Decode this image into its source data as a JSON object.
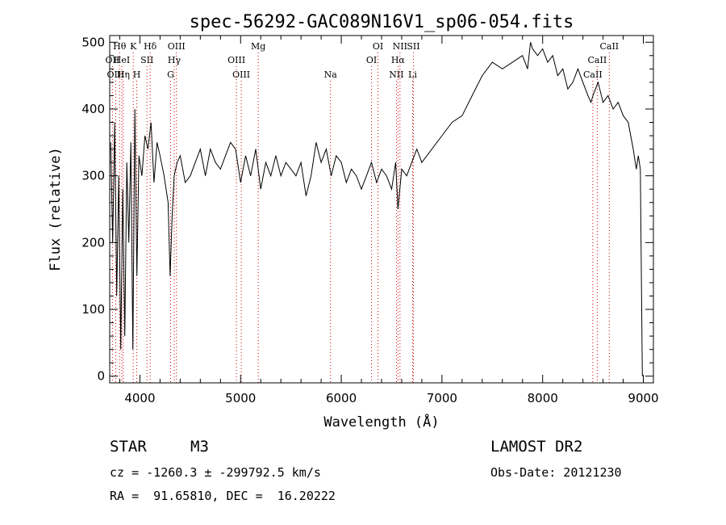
{
  "chart_data": {
    "type": "line",
    "title": "spec-56292-GAC089N16V1_sp06-054.fits",
    "xlabel": "Wavelength (Å)",
    "ylabel": "Flux (relative)",
    "xlim": [
      3700,
      9100
    ],
    "ylim": [
      -10,
      510
    ],
    "xticks": [
      4000,
      5000,
      6000,
      7000,
      8000,
      9000
    ],
    "yticks": [
      0,
      100,
      200,
      300,
      400,
      500
    ],
    "grid": false,
    "series": [
      {
        "x": [
          3710,
          3730,
          3750,
          3770,
          3790,
          3810,
          3830,
          3850,
          3870,
          3890,
          3910,
          3930,
          3950,
          3970,
          3990,
          4020,
          4050,
          4080,
          4110,
          4140,
          4170,
          4200,
          4240,
          4280,
          4300,
          4320,
          4340,
          4370,
          4400,
          4450,
          4500,
          4550,
          4600,
          4650,
          4700,
          4750,
          4800,
          4850,
          4900,
          4950,
          5000,
          5050,
          5100,
          5150,
          5200,
          5250,
          5300,
          5350,
          5400,
          5450,
          5500,
          5550,
          5600,
          5650,
          5700,
          5750,
          5800,
          5850,
          5900,
          5950,
          6000,
          6050,
          6100,
          6150,
          6200,
          6250,
          6300,
          6350,
          6400,
          6450,
          6500,
          6540,
          6563,
          6600,
          6650,
          6700,
          6750,
          6800,
          6850,
          6900,
          6950,
          7000,
          7100,
          7200,
          7300,
          7400,
          7500,
          7600,
          7700,
          7800,
          7850,
          7880,
          7900,
          7950,
          8000,
          8050,
          8100,
          8150,
          8200,
          8250,
          8300,
          8350,
          8400,
          8450,
          8480,
          8500,
          8550,
          8600,
          8650,
          8700,
          8750,
          8800,
          8850,
          8900,
          8930,
          8950,
          8970,
          8990
        ],
        "y": [
          350,
          200,
          380,
          120,
          300,
          40,
          280,
          60,
          320,
          200,
          350,
          40,
          400,
          150,
          330,
          300,
          360,
          340,
          380,
          290,
          350,
          330,
          300,
          260,
          150,
          240,
          300,
          320,
          330,
          290,
          300,
          320,
          340,
          300,
          340,
          320,
          310,
          330,
          350,
          340,
          290,
          330,
          300,
          340,
          280,
          320,
          300,
          330,
          300,
          320,
          310,
          300,
          320,
          270,
          300,
          350,
          320,
          340,
          300,
          330,
          320,
          290,
          310,
          300,
          280,
          300,
          320,
          290,
          310,
          300,
          280,
          320,
          250,
          310,
          300,
          320,
          340,
          320,
          330,
          340,
          350,
          360,
          380,
          390,
          420,
          450,
          470,
          460,
          470,
          480,
          460,
          500,
          490,
          480,
          490,
          470,
          480,
          450,
          460,
          430,
          440,
          460,
          440,
          420,
          410,
          420,
          440,
          410,
          420,
          400,
          410,
          390,
          380,
          340,
          310,
          330,
          310,
          0
        ]
      }
    ],
    "annotations": [
      {
        "label": "Hθ",
        "x": 3798,
        "row": 0
      },
      {
        "label": "K",
        "x": 3934,
        "row": 0
      },
      {
        "label": "Hδ",
        "x": 4102,
        "row": 0
      },
      {
        "label": "OIII",
        "x": 4363,
        "row": 0
      },
      {
        "label": "Mg",
        "x": 5175,
        "row": 0
      },
      {
        "label": "OI",
        "x": 6364,
        "row": 0
      },
      {
        "label": "NII",
        "x": 6583,
        "row": 0
      },
      {
        "label": "SII",
        "x": 6716,
        "row": 0
      },
      {
        "label": "CaII",
        "x": 8662,
        "row": 0
      },
      {
        "label": "OII",
        "x": 3727,
        "row": 1
      },
      {
        "label": "HeI",
        "x": 3820,
        "row": 1
      },
      {
        "label": "SII",
        "x": 4070,
        "row": 1
      },
      {
        "label": "Hγ",
        "x": 4341,
        "row": 1
      },
      {
        "label": "OIII",
        "x": 4959,
        "row": 1
      },
      {
        "label": "OI",
        "x": 6300,
        "row": 1
      },
      {
        "label": "Hα",
        "x": 6563,
        "row": 1
      },
      {
        "label": "CaII",
        "x": 8542,
        "row": 1
      },
      {
        "label": "OIII",
        "x": 3760,
        "row": 2
      },
      {
        "label": "Hη",
        "x": 3835,
        "row": 2
      },
      {
        "label": "H",
        "x": 3969,
        "row": 2
      },
      {
        "label": "G",
        "x": 4305,
        "row": 2
      },
      {
        "label": "OIII",
        "x": 5007,
        "row": 2
      },
      {
        "label": "Na",
        "x": 5893,
        "row": 2
      },
      {
        "label": "NII",
        "x": 6548,
        "row": 2
      },
      {
        "label": "Li",
        "x": 6708,
        "row": 2
      },
      {
        "label": "CaII",
        "x": 8498,
        "row": 2
      }
    ],
    "colors": {
      "spectrum": "#000000",
      "line_markers": "#cc0000"
    }
  },
  "info": {
    "object_class": "STAR",
    "subclass": "M3",
    "survey": "LAMOST DR2",
    "cz_line": "cz = -1260.3 ± -299792.5 km/s",
    "obs_date": "Obs-Date: 20121230",
    "coords": "RA =  91.65810, DEC =  16.20222"
  }
}
